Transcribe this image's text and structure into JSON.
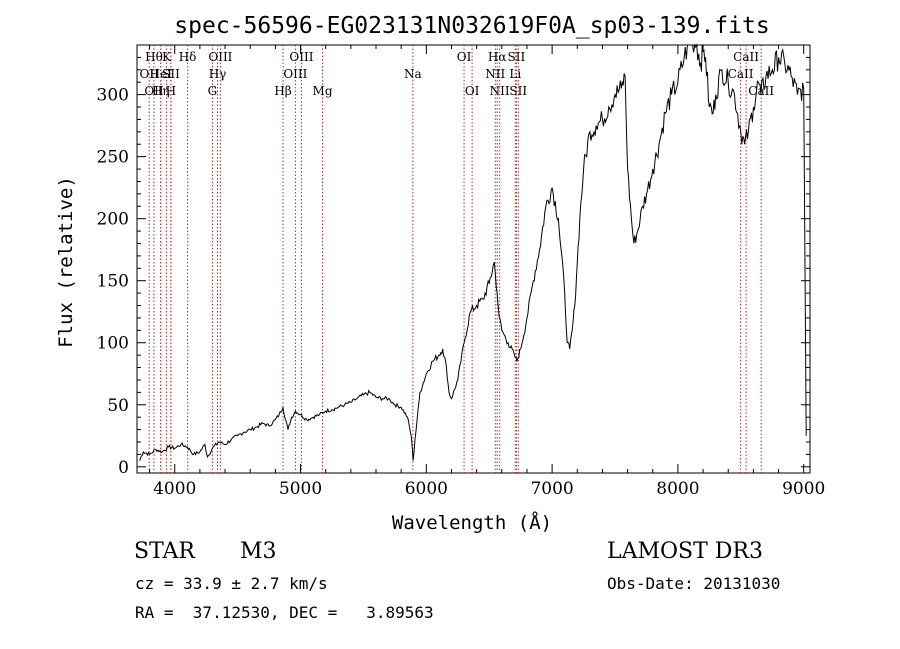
{
  "chart_data": {
    "type": "line",
    "title": "spec-56596-EG023131N032619F0A_sp03-139.fits",
    "xlabel": "Wavelength (Å)",
    "ylabel": "Flux (relative)",
    "xlim": [
      3700,
      9050
    ],
    "ylim": [
      -5,
      340
    ],
    "xticks": [
      4000,
      5000,
      6000,
      7000,
      8000,
      9000
    ],
    "yticks": [
      0,
      50,
      100,
      150,
      200,
      250,
      300
    ],
    "grid": false,
    "series": [
      {
        "name": "flux",
        "x": [
          3720,
          3750,
          3800,
          3850,
          3900,
          3950,
          4000,
          4050,
          4100,
          4150,
          4200,
          4240,
          4260,
          4300,
          4350,
          4400,
          4450,
          4500,
          4550,
          4600,
          4650,
          4700,
          4750,
          4800,
          4830,
          4860,
          4900,
          4930,
          4960,
          5000,
          5050,
          5100,
          5150,
          5200,
          5250,
          5300,
          5350,
          5400,
          5450,
          5500,
          5550,
          5600,
          5650,
          5700,
          5750,
          5800,
          5850,
          5880,
          5895,
          5910,
          5950,
          6000,
          6050,
          6100,
          6130,
          6160,
          6180,
          6200,
          6250,
          6300,
          6350,
          6400,
          6450,
          6500,
          6540,
          6563,
          6580,
          6600,
          6650,
          6700,
          6720,
          6750,
          6800,
          6850,
          6900,
          6950,
          7000,
          7050,
          7100,
          7120,
          7140,
          7160,
          7180,
          7200,
          7220,
          7250,
          7300,
          7350,
          7400,
          7450,
          7500,
          7550,
          7580,
          7600,
          7630,
          7650,
          7680,
          7700,
          7720,
          7750,
          7800,
          7850,
          7900,
          7950,
          8000,
          8050,
          8100,
          8150,
          8180,
          8200,
          8220,
          8250,
          8280,
          8300,
          8350,
          8400,
          8450,
          8500,
          8530,
          8560,
          8600,
          8640,
          8660,
          8700,
          8750,
          8800,
          8850,
          8900,
          8950,
          9000,
          9020
        ],
        "values": [
          5,
          12,
          10,
          14,
          12,
          16,
          15,
          18,
          16,
          10,
          12,
          18,
          8,
          15,
          20,
          18,
          22,
          25,
          28,
          30,
          32,
          35,
          33,
          38,
          42,
          48,
          30,
          40,
          45,
          42,
          38,
          40,
          42,
          45,
          46,
          48,
          50,
          52,
          55,
          58,
          60,
          56,
          55,
          55,
          50,
          48,
          40,
          25,
          5,
          22,
          60,
          75,
          85,
          90,
          95,
          80,
          60,
          55,
          70,
          100,
          125,
          130,
          135,
          148,
          165,
          140,
          120,
          110,
          100,
          90,
          85,
          95,
          120,
          150,
          175,
          210,
          225,
          200,
          140,
          100,
          95,
          110,
          130,
          165,
          200,
          240,
          270,
          275,
          280,
          290,
          300,
          305,
          315,
          240,
          200,
          180,
          190,
          200,
          210,
          220,
          240,
          260,
          285,
          300,
          310,
          330,
          345,
          340,
          325,
          335,
          330,
          290,
          285,
          300,
          320,
          310,
          300,
          270,
          260,
          270,
          290,
          310,
          300,
          315,
          320,
          330,
          325,
          315,
          300,
          305,
          25
        ]
      }
    ],
    "lines": [
      {
        "wavelength": 3797,
        "label": "OII",
        "row": 2
      },
      {
        "wavelength": 3835,
        "label": "Hθ",
        "row": 1
      },
      {
        "wavelength": 3835,
        "label": "OII",
        "row": 3
      },
      {
        "wavelength": 3889,
        "label": "Hη",
        "row": 3
      },
      {
        "wavelength": 3889,
        "label": "HeI",
        "row": 2
      },
      {
        "wavelength": 3934,
        "label": "K",
        "row": 1
      },
      {
        "wavelength": 3969,
        "label": "H",
        "row": 3
      },
      {
        "wavelength": 3970,
        "label": "SII",
        "row": 2
      },
      {
        "wavelength": 4102,
        "label": "Hδ",
        "row": 1
      },
      {
        "wavelength": 4300,
        "label": "G",
        "row": 3
      },
      {
        "wavelength": 4340,
        "label": "Hγ",
        "row": 2
      },
      {
        "wavelength": 4363,
        "label": "OIII",
        "row": 1
      },
      {
        "wavelength": 4861,
        "label": "Hβ",
        "row": 3
      },
      {
        "wavelength": 4959,
        "label": "OIII",
        "row": 2
      },
      {
        "wavelength": 5007,
        "label": "OIII",
        "row": 1
      },
      {
        "wavelength": 5175,
        "label": "Mg",
        "row": 3
      },
      {
        "wavelength": 5893,
        "label": "Na",
        "row": 2
      },
      {
        "wavelength": 6300,
        "label": "OI",
        "row": 1
      },
      {
        "wavelength": 6364,
        "label": "OI",
        "row": 3
      },
      {
        "wavelength": 6548,
        "label": "NII",
        "row": 2
      },
      {
        "wavelength": 6563,
        "label": "Hα",
        "row": 1
      },
      {
        "wavelength": 6583,
        "label": "NII",
        "row": 3
      },
      {
        "wavelength": 6707,
        "label": "Li",
        "row": 2
      },
      {
        "wavelength": 6716,
        "label": "SII",
        "row": 1
      },
      {
        "wavelength": 6731,
        "label": "SII",
        "row": 3
      },
      {
        "wavelength": 8498,
        "label": "CaII",
        "row": 2
      },
      {
        "wavelength": 8542,
        "label": "CaII",
        "row": 1
      },
      {
        "wavelength": 8662,
        "label": "CaII",
        "row": 3
      }
    ]
  },
  "info": {
    "object_class": "STAR",
    "subclass": "M3",
    "survey": "LAMOST DR3",
    "redshift_line": "cz = 33.9 ± 2.7 km/s",
    "obs_date_line": "Obs-Date: 20131030",
    "coords_line": "RA =  37.12530, DEC =   3.89563"
  }
}
